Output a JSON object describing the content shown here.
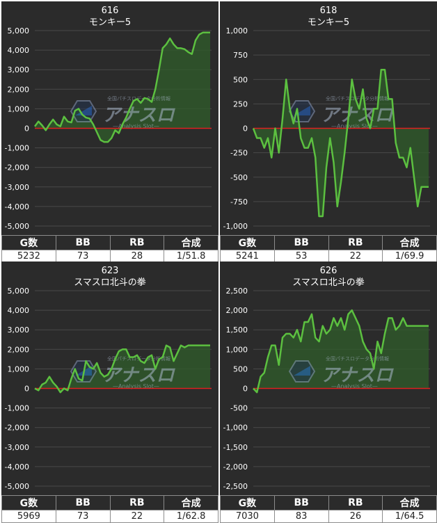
{
  "headers": {
    "games": "G数",
    "bb": "BB",
    "rb": "RB",
    "combined": "合成"
  },
  "colors": {
    "bg": "#2b2b2b",
    "grid": "#4a4a4a",
    "zero": "#e02020",
    "line": "#5cc040",
    "fill": "#2f5a2a",
    "text": "#ffffff"
  },
  "watermark": {
    "logo": "アナスロ",
    "sub": "—Analysis Slot—",
    "tagline": "全国パチスロデータ分析情報"
  },
  "panels": [
    {
      "number": "616",
      "name": "モンキー5",
      "stats": {
        "games": "5232",
        "bb": "73",
        "rb": "28",
        "combined": "1/51.8"
      },
      "chart_data": {
        "type": "area",
        "ylim": [
          -5000,
          5000
        ],
        "yticks": [
          "5,000",
          "4,000",
          "3,000",
          "2,000",
          "1,000",
          "0",
          "-1,000",
          "-2,000",
          "-3,000",
          "-4,000",
          "-5,000"
        ],
        "x": [
          0,
          1,
          2,
          3,
          4,
          5,
          6,
          7,
          8,
          9,
          10,
          11,
          12,
          13,
          14,
          15,
          16,
          17,
          18,
          19,
          20,
          21,
          22,
          23,
          24,
          25,
          26,
          27,
          28,
          29,
          30,
          31,
          32,
          33,
          34,
          35,
          36,
          37,
          38,
          39,
          40,
          41,
          42,
          43,
          44,
          45,
          46,
          47,
          48
        ],
        "values": [
          100,
          350,
          150,
          -100,
          200,
          450,
          200,
          100,
          600,
          350,
          300,
          900,
          1000,
          700,
          550,
          500,
          200,
          -200,
          -600,
          -700,
          -700,
          -500,
          -100,
          -250,
          200,
          550,
          1000,
          1400,
          1500,
          1300,
          1550,
          1500,
          1350,
          2000,
          3000,
          4100,
          4300,
          4600,
          4300,
          4100,
          4100,
          4050,
          3900,
          3800,
          4500,
          4800,
          4900,
          4900,
          4900
        ]
      }
    },
    {
      "number": "618",
      "name": "モンキー5",
      "stats": {
        "games": "5241",
        "bb": "53",
        "rb": "22",
        "combined": "1/69.9"
      },
      "chart_data": {
        "type": "area",
        "ylim": [
          -1000,
          1000
        ],
        "yticks": [
          "1,000",
          "750",
          "500",
          "250",
          "0",
          "-250",
          "-500",
          "-750",
          "-1,000"
        ],
        "x": [
          0,
          1,
          2,
          3,
          4,
          5,
          6,
          7,
          8,
          9,
          10,
          11,
          12,
          13,
          14,
          15,
          16,
          17,
          18,
          19,
          20,
          21,
          22,
          23,
          24,
          25,
          26,
          27,
          28,
          29,
          30,
          31,
          32,
          33,
          34,
          35,
          36,
          37,
          38,
          39,
          40,
          41,
          42,
          43,
          44,
          45,
          46,
          47,
          48
        ],
        "values": [
          0,
          -100,
          -100,
          -200,
          -100,
          -300,
          0,
          -250,
          100,
          500,
          200,
          50,
          200,
          -100,
          -200,
          -200,
          -100,
          -300,
          -900,
          -900,
          -400,
          -100,
          -350,
          -800,
          -550,
          -250,
          100,
          500,
          300,
          200,
          400,
          100,
          0,
          200,
          200,
          600,
          600,
          300,
          300,
          -150,
          -300,
          -300,
          -400,
          -200,
          -500,
          -800,
          -600,
          -600,
          -600
        ]
      }
    },
    {
      "number": "623",
      "name": "スマスロ北斗の拳",
      "stats": {
        "games": "5969",
        "bb": "73",
        "rb": "22",
        "combined": "1/62.8"
      },
      "chart_data": {
        "type": "area",
        "ylim": [
          -5000,
          5000
        ],
        "yticks": [
          "5,000",
          "4,000",
          "3,000",
          "2,000",
          "1,000",
          "0",
          "-1,000",
          "-2,000",
          "-3,000",
          "-4,000",
          "-5,000"
        ],
        "x": [
          0,
          1,
          2,
          3,
          4,
          5,
          6,
          7,
          8,
          9,
          10,
          11,
          12,
          13,
          14,
          15,
          16,
          17,
          18,
          19,
          20,
          21,
          22,
          23,
          24,
          25,
          26,
          27,
          28,
          29,
          30,
          31,
          32,
          33,
          34,
          35,
          36,
          37,
          38,
          39,
          40,
          41,
          42,
          43,
          44,
          45,
          46,
          47,
          48
        ],
        "values": [
          0,
          -100,
          200,
          300,
          600,
          300,
          100,
          -200,
          0,
          -100,
          500,
          1000,
          500,
          400,
          1400,
          1100,
          1000,
          1300,
          800,
          600,
          700,
          1000,
          1500,
          1900,
          2000,
          2000,
          1600,
          1600,
          1700,
          1400,
          1300,
          1600,
          1700,
          1000,
          1500,
          1600,
          2200,
          2100,
          1400,
          1800,
          2200,
          2100,
          2200,
          2200,
          2200,
          2200,
          2200,
          2200,
          2200
        ]
      }
    },
    {
      "number": "626",
      "name": "スマスロ北斗の拳",
      "stats": {
        "games": "7030",
        "bb": "83",
        "rb": "26",
        "combined": "1/64.5"
      },
      "chart_data": {
        "type": "area",
        "ylim": [
          -2500,
          2500
        ],
        "yticks": [
          "2,500",
          "2,000",
          "1,500",
          "1,000",
          "500",
          "0",
          "-500",
          "-1,000",
          "-1,500",
          "-2,000",
          "-2,500"
        ],
        "x": [
          0,
          1,
          2,
          3,
          4,
          5,
          6,
          7,
          8,
          9,
          10,
          11,
          12,
          13,
          14,
          15,
          16,
          17,
          18,
          19,
          20,
          21,
          22,
          23,
          24,
          25,
          26,
          27,
          28,
          29,
          30,
          31,
          32,
          33,
          34,
          35,
          36,
          37,
          38,
          39,
          40,
          41,
          42,
          43,
          44,
          45,
          46,
          47,
          48
        ],
        "values": [
          0,
          -100,
          300,
          400,
          800,
          1100,
          1100,
          600,
          1300,
          1400,
          1400,
          1300,
          1500,
          1200,
          1700,
          1700,
          1900,
          1300,
          1200,
          1600,
          1400,
          1500,
          1800,
          1600,
          1800,
          1500,
          1900,
          2000,
          1800,
          1600,
          1200,
          1000,
          900,
          500,
          1200,
          900,
          1400,
          1800,
          1800,
          1500,
          1600,
          1800,
          1600,
          1600,
          1600,
          1600,
          1600,
          1600,
          1600
        ]
      }
    }
  ]
}
